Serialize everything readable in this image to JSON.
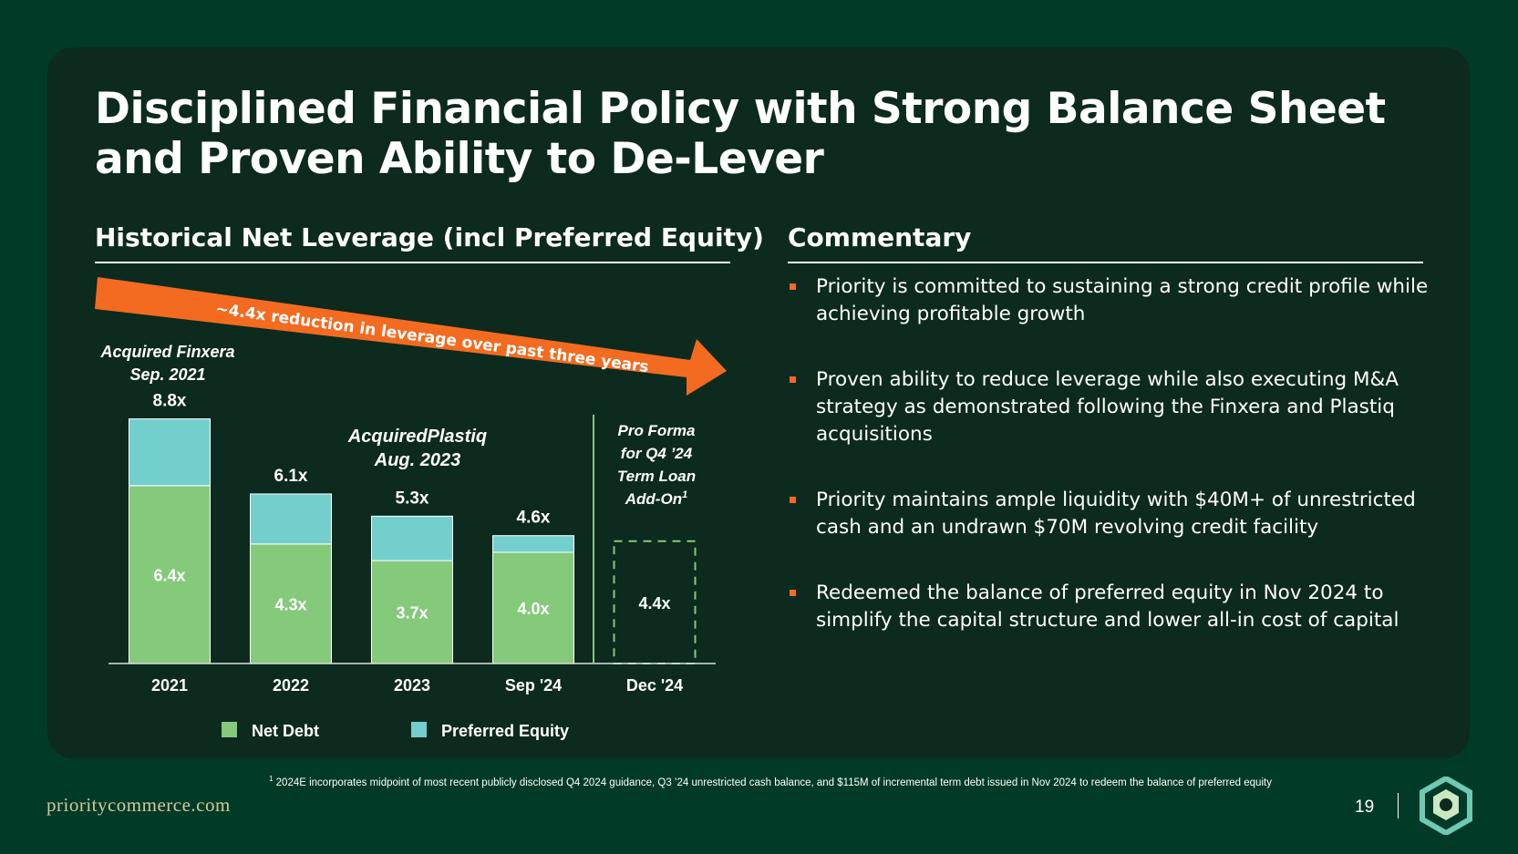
{
  "slide": {
    "title": "Disciplined Financial Policy with Strong Balance Sheet and Proven Ability to De-Lever",
    "page_number": "19",
    "website": "prioritycommerce.com",
    "footnote_marker": "1",
    "footnote": "2024E incorporates midpoint of most recent publicly disclosed Q4 2024 guidance, Q3 ’24 unrestricted cash balance, and $115M of incremental term debt issued in Nov 2024 to redeem the balance of preferred equity"
  },
  "left_panel": {
    "heading": "Historical Net Leverage (incl Preferred Equity)"
  },
  "right_panel": {
    "heading": "Commentary",
    "bullets": [
      "Priority is committed to sustaining a strong credit profile while achieving profitable growth",
      "Proven ability to reduce leverage while also executing M&A strategy as demonstrated following the Finxera and Plastiq acquisitions",
      "Priority maintains ample liquidity with $40M+ of unrestricted cash and an undrawn $70M revolving credit facility",
      "Redeemed the balance of preferred equity in Nov 2024 to simplify the capital structure and lower all-in cost of capital"
    ]
  },
  "chart_data": {
    "type": "bar",
    "stacked": true,
    "title": "Historical Net Leverage (incl Preferred Equity)",
    "categories": [
      "2021",
      "2022",
      "2023",
      "Sep '24",
      "Dec '24"
    ],
    "series": [
      {
        "name": "Net Debt",
        "values": [
          6.4,
          4.3,
          3.7,
          4.0,
          4.4
        ],
        "labels": [
          "6.4x",
          "4.3x",
          "3.7x",
          "4.0x",
          "4.4x"
        ]
      },
      {
        "name": "Preferred Equity",
        "values": [
          2.4,
          1.8,
          1.6,
          0.6,
          0
        ]
      }
    ],
    "totals": [
      8.8,
      6.1,
      5.3,
      4.6,
      4.4
    ],
    "total_labels": [
      "8.8x",
      "6.1x",
      "5.3x",
      "4.6x",
      ""
    ],
    "pro_forma_index": 4,
    "ylim": [
      0,
      10
    ],
    "annotations": {
      "arrow": "~4.4x reduction in leverage over past three years",
      "finxera_line1": "Acquired Finxera",
      "finxera_line2": "Sep. 2021",
      "plastiq_line1": "AcquiredPlastiq",
      "plastiq_line2": "Aug. 2023",
      "pro_forma_lines": [
        "Pro Forma",
        "for Q4 ’24",
        "Term Loan",
        "Add-On"
      ],
      "pro_forma_sup": "1"
    },
    "legend": [
      "Net Debt",
      "Preferred Equity"
    ],
    "colors": {
      "net_debt": "#85c97b",
      "preferred": "#72cfcc",
      "arrow": "#f26b21",
      "divider": "#85c97b"
    }
  }
}
